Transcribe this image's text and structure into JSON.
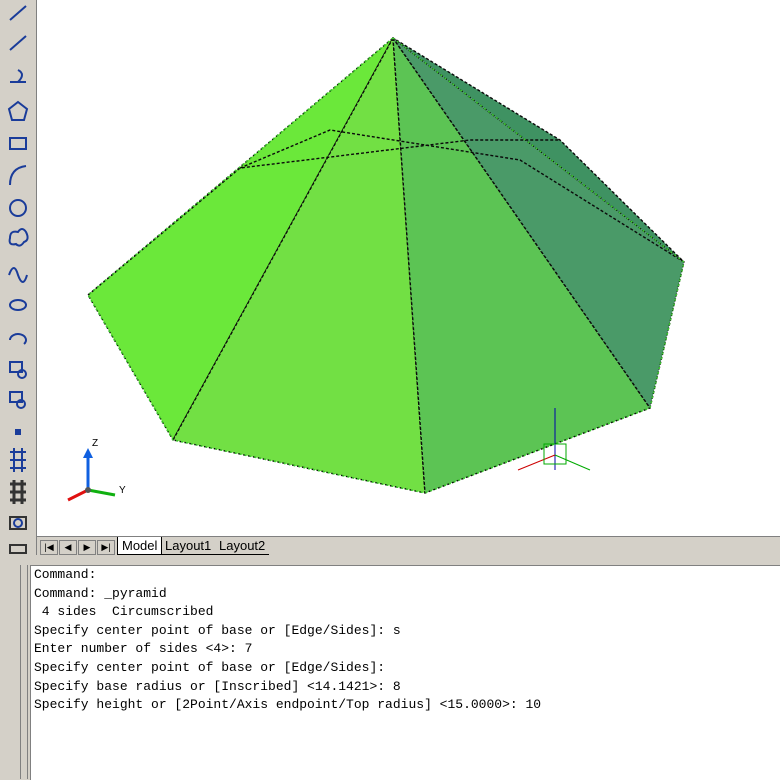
{
  "viewport": {
    "ucs": {
      "z_label": "Z",
      "y_label": "Y"
    }
  },
  "tabs": [
    "Model",
    "Layout1",
    "Layout2"
  ],
  "command_lines": [
    "Command:",
    "Command: _pyramid",
    " 4 sides  Circumscribed",
    "Specify center point of base or [Edge/Sides]: s",
    "Enter number of sides <4>: 7",
    "Specify center point of base or [Edge/Sides]:",
    "Specify base radius or [Inscribed] <14.1421>: 8",
    "Specify height or [2Point/Axis endpoint/Top radius] <15.0000>: 10"
  ]
}
